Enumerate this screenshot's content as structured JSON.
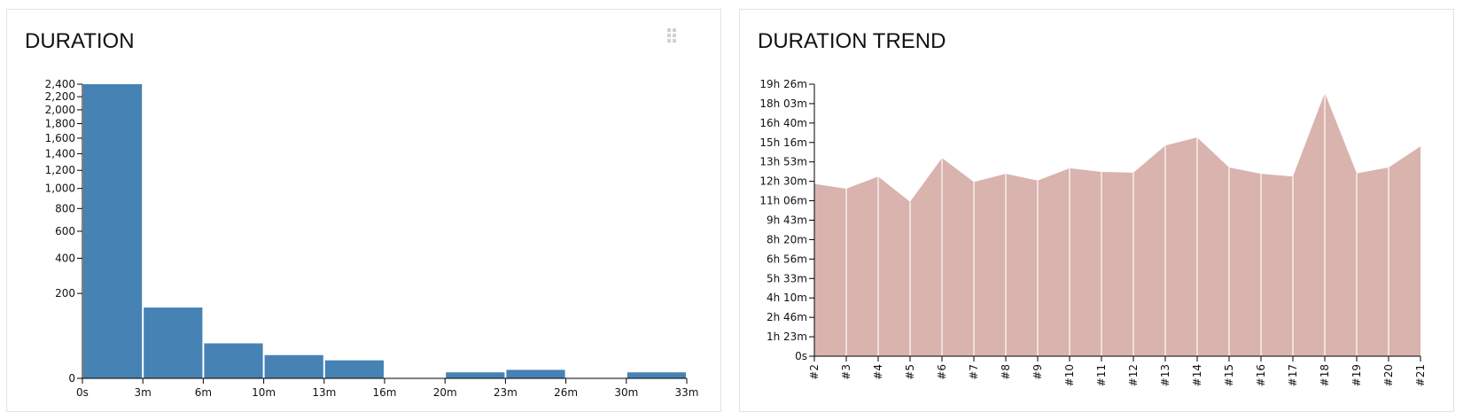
{
  "chart_data": [
    {
      "type": "bar",
      "title": "DURATION",
      "scale": "sqrt",
      "categories": [
        "0s-3m",
        "3m-6m",
        "6m-10m",
        "10m-13m",
        "13m-16m",
        "16m-20m",
        "20m-23m",
        "23m-26m",
        "26m-30m",
        "30m-33m"
      ],
      "x_tick_labels": [
        "0s",
        "3m",
        "6m",
        "10m",
        "13m",
        "16m",
        "20m",
        "23m",
        "26m",
        "30m",
        "33m"
      ],
      "values": [
        2400,
        139,
        34,
        15,
        9,
        0,
        1,
        2,
        0,
        1
      ],
      "y_ticks": [
        0,
        200,
        400,
        600,
        800,
        1000,
        1200,
        1400,
        1600,
        1800,
        2000,
        2200,
        2400
      ],
      "y_tick_labels": [
        "0",
        "200",
        "400",
        "600",
        "800",
        "1,000",
        "1,200",
        "1,400",
        "1,600",
        "1,800",
        "2,000",
        "2,200",
        "2,400"
      ],
      "ylim": [
        0,
        2400
      ],
      "color": "#4682b4"
    },
    {
      "type": "area",
      "title": "DURATION TREND",
      "x": [
        "#2",
        "#3",
        "#4",
        "#5",
        "#6",
        "#7",
        "#8",
        "#9",
        "#10",
        "#11",
        "#12",
        "#13",
        "#14",
        "#15",
        "#16",
        "#17",
        "#18",
        "#19",
        "#20",
        "#21"
      ],
      "values_minutes": [
        739,
        718,
        770,
        662,
        850,
        747,
        782,
        753,
        806,
        790,
        787,
        903,
        938,
        809,
        782,
        770,
        1129,
        784,
        809,
        900
      ],
      "y_ticks_minutes": [
        0,
        83.3,
        166.6,
        249.9,
        333.2,
        416.5,
        499.8,
        583.1,
        666.4,
        749.7,
        833,
        916.3,
        999.6,
        1082.9,
        1166.2
      ],
      "y_tick_labels": [
        "0s",
        "1h 23m",
        "2h 46m",
        "4h 10m",
        "5h 33m",
        "6h 56m",
        "8h 20m",
        "9h 43m",
        "11h 06m",
        "12h 30m",
        "13h 53m",
        "15h 16m",
        "16h 40m",
        "18h 03m",
        "19h 26m"
      ],
      "ylim": [
        0,
        1166.2
      ],
      "color": "#d9b3ae"
    }
  ]
}
